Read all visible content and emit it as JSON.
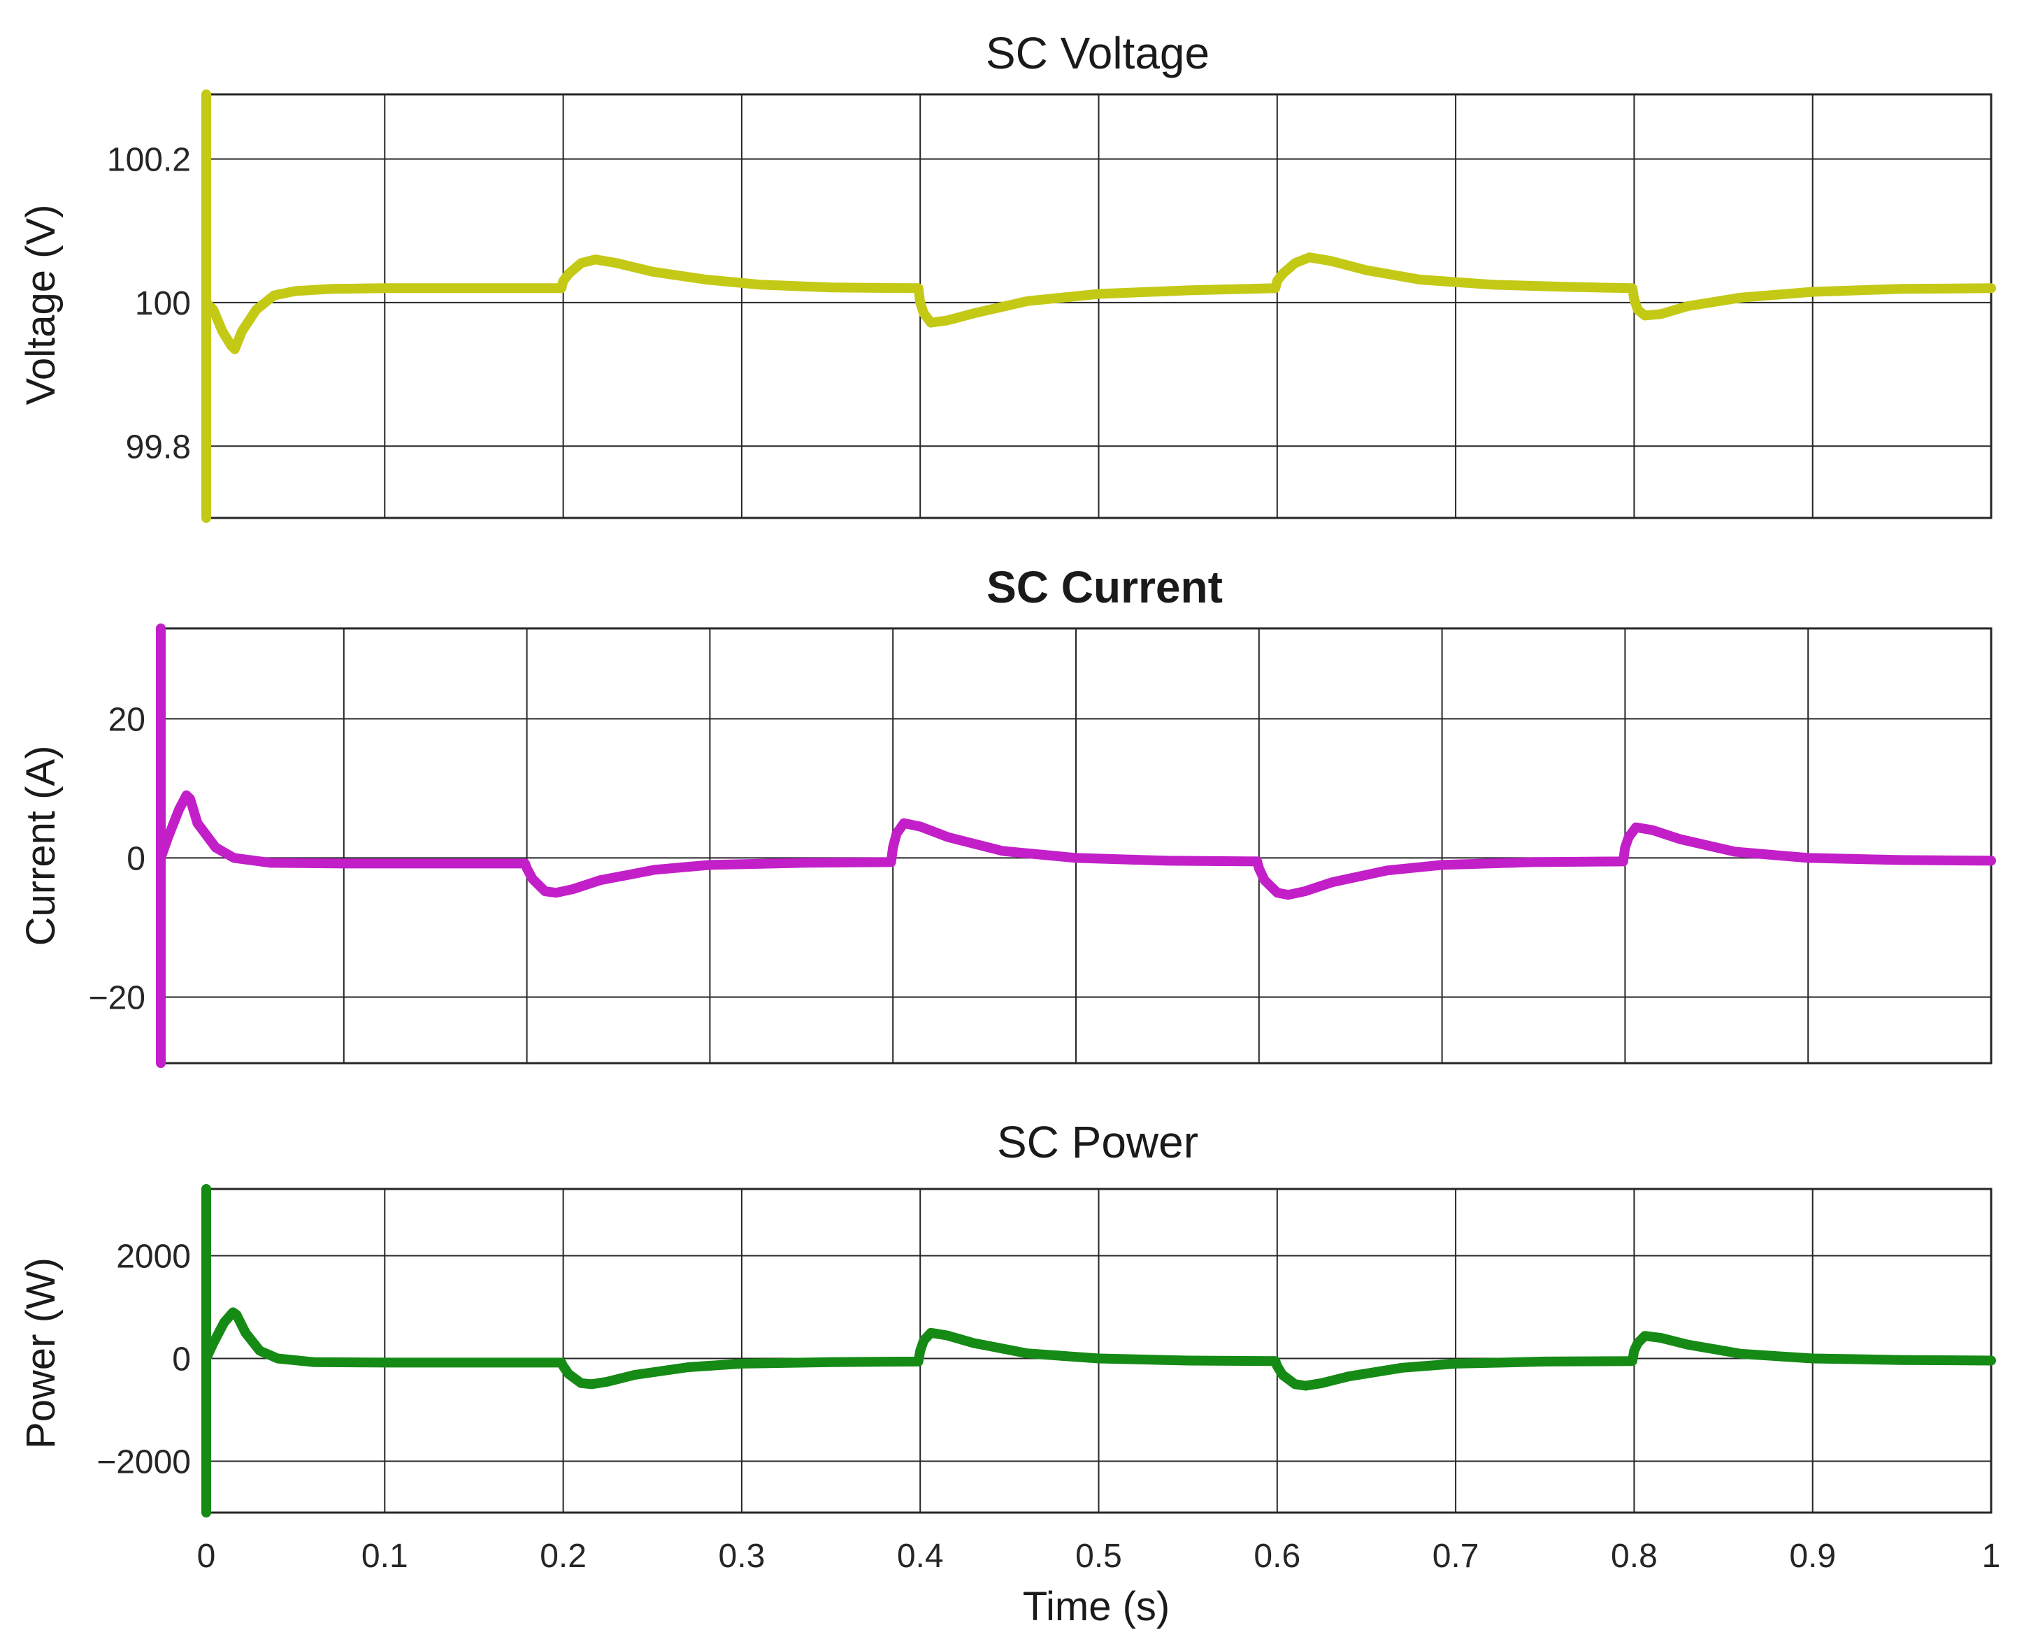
{
  "chart_data": [
    {
      "type": "line",
      "title": "SC Voltage",
      "title_bold": false,
      "xlabel": "",
      "ylabel": "Voltage (V)",
      "xlim": [
        0,
        1
      ],
      "ylim": [
        99.7,
        100.29
      ],
      "xticks": [
        0,
        0.1,
        0.2,
        0.3,
        0.4,
        0.5,
        0.6,
        0.7,
        0.8,
        0.9,
        1
      ],
      "xtick_labels_visible": false,
      "yticks": [
        99.8,
        100,
        100.2
      ],
      "ytick_labels": [
        "99.8",
        "100",
        "100.2"
      ],
      "grid": true,
      "series": [
        {
          "color": "#c4c916",
          "x": [
            0,
            0,
            0,
            0.004,
            0.009,
            0.014,
            0.016,
            0.02,
            0.028,
            0.038,
            0.05,
            0.07,
            0.1,
            0.15,
            0.199,
            0.2,
            0.203,
            0.21,
            0.218,
            0.23,
            0.25,
            0.28,
            0.31,
            0.35,
            0.399,
            0.4,
            0.402,
            0.406,
            0.415,
            0.43,
            0.46,
            0.5,
            0.55,
            0.599,
            0.6,
            0.603,
            0.61,
            0.618,
            0.63,
            0.65,
            0.68,
            0.72,
            0.76,
            0.799,
            0.8,
            0.802,
            0.806,
            0.815,
            0.83,
            0.86,
            0.9,
            0.95,
            1.0
          ],
          "y": [
            99.7,
            100.29,
            100.0,
            99.99,
            99.96,
            99.94,
            99.935,
            99.96,
            99.99,
            100.01,
            100.016,
            100.019,
            100.02,
            100.02,
            100.02,
            100.03,
            100.04,
            100.055,
            100.06,
            100.055,
            100.043,
            100.032,
            100.025,
            100.021,
            100.02,
            100.0,
            99.985,
            99.972,
            99.975,
            99.985,
            100.002,
            100.012,
            100.017,
            100.02,
            100.03,
            100.04,
            100.055,
            100.063,
            100.058,
            100.045,
            100.032,
            100.025,
            100.022,
            100.02,
            100.005,
            99.99,
            99.982,
            99.984,
            99.995,
            100.007,
            100.015,
            100.019,
            100.02
          ]
        }
      ]
    },
    {
      "type": "line",
      "title": "SC Current",
      "title_bold": true,
      "xlabel": "",
      "ylabel": "Current (A)",
      "xlim": [
        0,
        1
      ],
      "ylim": [
        -29.5,
        33
      ],
      "xticks": [
        0,
        0.1,
        0.2,
        0.3,
        0.4,
        0.5,
        0.6,
        0.7,
        0.8,
        0.9,
        1
      ],
      "xtick_labels_visible": false,
      "yticks": [
        -20,
        0,
        20
      ],
      "ytick_labels": [
        "−20",
        "0",
        "20"
      ],
      "grid": true,
      "series": [
        {
          "color": "#c21fc9",
          "x": [
            0,
            0,
            0,
            0.004,
            0.01,
            0.014,
            0.016,
            0.02,
            0.03,
            0.04,
            0.06,
            0.1,
            0.15,
            0.199,
            0.2,
            0.203,
            0.21,
            0.216,
            0.225,
            0.24,
            0.27,
            0.3,
            0.35,
            0.399,
            0.4,
            0.402,
            0.406,
            0.415,
            0.43,
            0.46,
            0.5,
            0.55,
            0.599,
            0.6,
            0.603,
            0.61,
            0.616,
            0.625,
            0.64,
            0.67,
            0.7,
            0.75,
            0.799,
            0.8,
            0.802,
            0.806,
            0.815,
            0.83,
            0.86,
            0.9,
            0.95,
            1.0
          ],
          "y": [
            -29.5,
            33,
            0,
            3,
            7,
            9,
            8.5,
            5,
            1.5,
            0,
            -0.7,
            -0.8,
            -0.8,
            -0.8,
            -1.5,
            -3,
            -4.8,
            -5,
            -4.5,
            -3.2,
            -1.7,
            -1.0,
            -0.7,
            -0.6,
            1.5,
            3.5,
            5,
            4.5,
            3,
            1,
            0,
            -0.4,
            -0.5,
            -1.5,
            -3.2,
            -5,
            -5.3,
            -4.8,
            -3.5,
            -1.8,
            -1.0,
            -0.6,
            -0.5,
            1.5,
            3,
            4.4,
            4,
            2.7,
            0.9,
            0,
            -0.3,
            -0.4
          ]
        }
      ]
    },
    {
      "type": "line",
      "title": "SC Power",
      "title_bold": false,
      "xlabel": "Time (s)",
      "ylabel": "Power (W)",
      "xlim": [
        0,
        1
      ],
      "ylim": [
        -3000,
        3300
      ],
      "xticks": [
        0,
        0.1,
        0.2,
        0.3,
        0.4,
        0.5,
        0.6,
        0.7,
        0.8,
        0.9,
        1
      ],
      "xtick_labels": [
        "0",
        "0.1",
        "0.2",
        "0.3",
        "0.4",
        "0.5",
        "0.6",
        "0.7",
        "0.8",
        "0.9",
        "1"
      ],
      "xtick_labels_visible": true,
      "yticks": [
        -2000,
        0,
        2000
      ],
      "ytick_labels": [
        "−2000",
        "0",
        "2000"
      ],
      "grid": true,
      "series": [
        {
          "color": "#158a15",
          "x": [
            0,
            0,
            0,
            0.004,
            0.01,
            0.015,
            0.017,
            0.022,
            0.03,
            0.04,
            0.06,
            0.1,
            0.15,
            0.199,
            0.2,
            0.203,
            0.21,
            0.216,
            0.225,
            0.24,
            0.27,
            0.3,
            0.35,
            0.399,
            0.4,
            0.402,
            0.406,
            0.415,
            0.43,
            0.46,
            0.5,
            0.55,
            0.599,
            0.6,
            0.603,
            0.61,
            0.616,
            0.625,
            0.64,
            0.67,
            0.7,
            0.75,
            0.799,
            0.8,
            0.802,
            0.806,
            0.815,
            0.83,
            0.86,
            0.9,
            0.95,
            1.0
          ],
          "y": [
            -3000,
            3300,
            0,
            300,
            700,
            900,
            850,
            500,
            150,
            0,
            -70,
            -80,
            -80,
            -80,
            -150,
            -300,
            -480,
            -500,
            -450,
            -320,
            -170,
            -100,
            -70,
            -60,
            150,
            350,
            500,
            450,
            300,
            100,
            0,
            -40,
            -50,
            -150,
            -320,
            -500,
            -530,
            -480,
            -350,
            -180,
            -100,
            -60,
            -50,
            150,
            300,
            440,
            400,
            270,
            90,
            0,
            -30,
            -40
          ]
        }
      ]
    }
  ]
}
